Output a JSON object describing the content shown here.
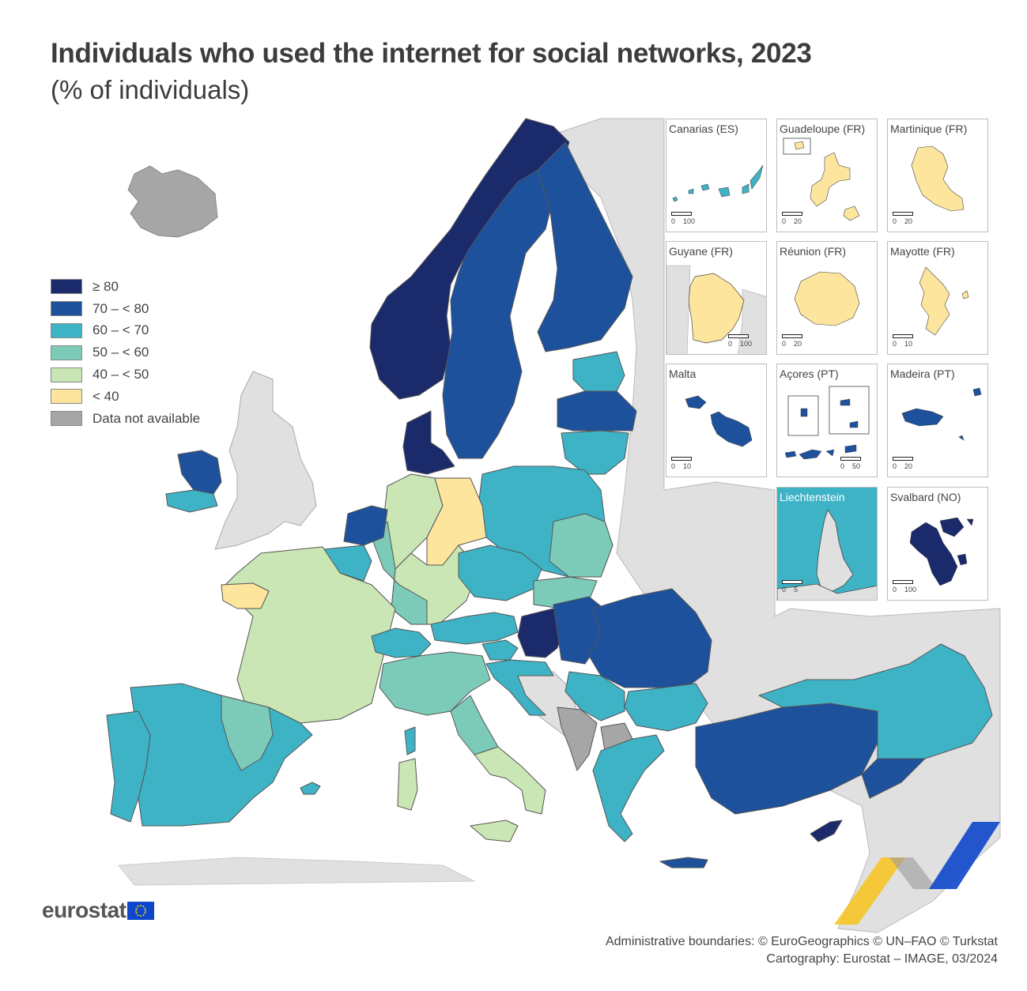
{
  "title": "Individuals who used the internet for social networks, 2023",
  "subtitle": "(% of individuals)",
  "legend": [
    {
      "label": "≥ 80",
      "color": "#1b2a6b"
    },
    {
      "label": "70 – < 80",
      "color": "#1d519c"
    },
    {
      "label": "60 – < 70",
      "color": "#3eb3c6"
    },
    {
      "label": "50 – < 60",
      "color": "#7ccbb9"
    },
    {
      "label": "40 – < 50",
      "color": "#c9e6b4"
    },
    {
      "label": "< 40",
      "color": "#fde59d"
    },
    {
      "label": "Data not available",
      "color": "#a6a6a6"
    }
  ],
  "colors": {
    "sea": "#ffffff",
    "non_eu_land": "#e0e0e0",
    "border": "#555555",
    "brand_blue": "#0e47cb",
    "accent_yellow": "#f8c31b"
  },
  "insets": [
    {
      "name": "Canarias (ES)",
      "scale": [
        "0",
        "100"
      ]
    },
    {
      "name": "Guadeloupe (FR)",
      "scale": [
        "0",
        "20"
      ]
    },
    {
      "name": "Martinique (FR)",
      "scale": [
        "0",
        "20"
      ]
    },
    {
      "name": "Guyane (FR)",
      "scale": [
        "0",
        "100"
      ]
    },
    {
      "name": "Réunion (FR)",
      "scale": [
        "0",
        "20"
      ]
    },
    {
      "name": "Mayotte (FR)",
      "scale": [
        "0",
        "10"
      ]
    },
    {
      "name": "Malta",
      "scale": [
        "0",
        "10"
      ]
    },
    {
      "name": "Açores (PT)",
      "scale": [
        "0",
        "50"
      ]
    },
    {
      "name": "Madeira (PT)",
      "scale": [
        "0",
        "20"
      ]
    },
    {
      "name": "Liechtenstein",
      "scale": [
        "0",
        "5"
      ]
    },
    {
      "name": "Svalbard (NO)",
      "scale": [
        "0",
        "100"
      ]
    }
  ],
  "logo": {
    "text": "eurostat"
  },
  "credits": {
    "line1": "Administrative boundaries: © EuroGeographics © UN–FAO © Turkstat",
    "line2": "Cartography: Eurostat – IMAGE, 03/2024"
  }
}
